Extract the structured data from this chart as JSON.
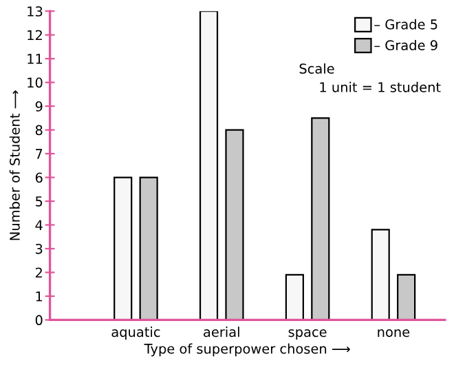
{
  "chart_data": {
    "type": "bar",
    "xlabel": "Type of superpower chosen ⟶",
    "ylabel": "Number of Student ⟶",
    "categories": [
      "aquatic",
      "aerial",
      "space",
      "none"
    ],
    "series": [
      {
        "name": "– Grade 5",
        "color": "#f7f7f7",
        "values": [
          6,
          13,
          1.9,
          3.8
        ]
      },
      {
        "name": "– Grade 9",
        "color": "#c8c8c8",
        "values": [
          6,
          8,
          8.5,
          1.9
        ]
      }
    ],
    "ylim": [
      0,
      13
    ],
    "yticks": [
      0,
      1,
      2,
      3,
      4,
      5,
      6,
      7,
      8,
      9,
      10,
      11,
      12,
      13
    ],
    "annotations": [
      "Scale",
      "1 unit = 1 student"
    ],
    "legend": "top right",
    "grid": false
  }
}
